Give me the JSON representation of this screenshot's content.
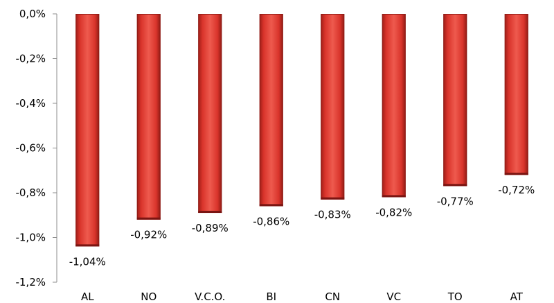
{
  "chart_data": {
    "type": "bar",
    "title": "",
    "xlabel": "",
    "ylabel": "",
    "categories": [
      "AL",
      "NO",
      "V.C.O.",
      "BI",
      "CN",
      "VC",
      "TO",
      "AT"
    ],
    "values": [
      -1.04,
      -0.92,
      -0.89,
      -0.86,
      -0.83,
      -0.82,
      -0.77,
      -0.72
    ],
    "data_labels": [
      "-1,04%",
      "-0,92%",
      "-0,89%",
      "-0,86%",
      "-0,83%",
      "-0,82%",
      "-0,77%",
      "-0,72%"
    ],
    "ylim": [
      -1.2,
      0
    ],
    "yticks": [
      0,
      -0.2,
      -0.4,
      -0.6,
      -0.8,
      -1.0,
      -1.2
    ],
    "ytick_labels": [
      "0,0%",
      "-0,2%",
      "-0,4%",
      "-0,6%",
      "-0,8%",
      "-1,0%",
      "-1,2%"
    ],
    "grid": false,
    "legend": "none",
    "colors": {
      "bar": "#d9342b",
      "bar_highlight": "#ee5a4e",
      "bar_shadow": "#7a1512",
      "axis": "#8c8c8c"
    }
  }
}
